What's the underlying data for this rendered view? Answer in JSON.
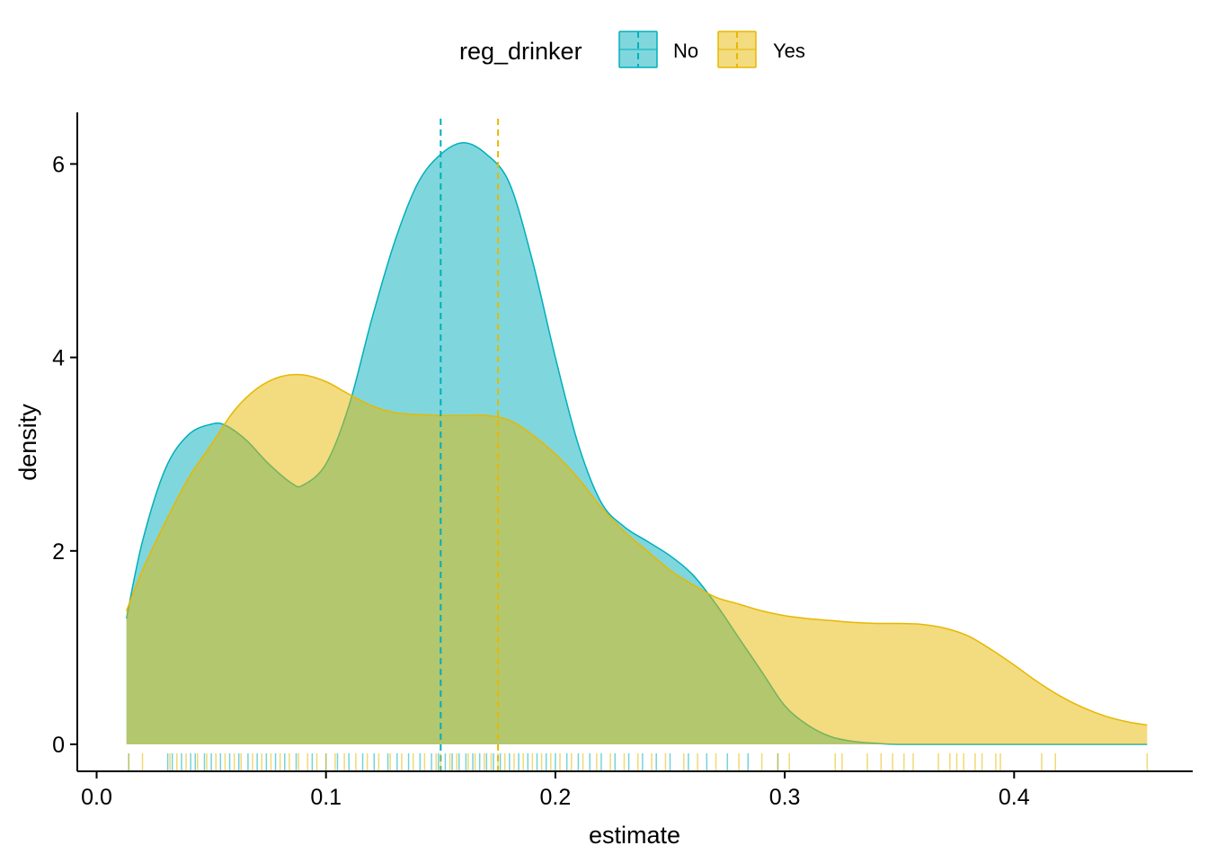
{
  "chart_data": {
    "type": "area",
    "xlabel": "estimate",
    "ylabel": "density",
    "xlim": [
      0.0,
      0.46
    ],
    "ylim": [
      0,
      6.5
    ],
    "x_ticks": [
      0.0,
      0.1,
      0.2,
      0.3,
      0.4
    ],
    "x_tick_labels": [
      "0.0",
      "0.1",
      "0.2",
      "0.3",
      "0.4"
    ],
    "y_ticks": [
      0,
      2,
      4,
      6
    ],
    "y_tick_labels": [
      "0",
      "2",
      "4",
      "6"
    ],
    "grid": false,
    "legend": {
      "title": "reg_drinker",
      "placement": "top"
    },
    "series": [
      {
        "name": "No",
        "color": "#00AFBB",
        "mean": 0.15,
        "x": [
          0.013,
          0.02,
          0.03,
          0.04,
          0.05,
          0.056,
          0.065,
          0.075,
          0.085,
          0.09,
          0.1,
          0.11,
          0.12,
          0.13,
          0.14,
          0.15,
          0.16,
          0.17,
          0.18,
          0.19,
          0.2,
          0.21,
          0.22,
          0.23,
          0.24,
          0.25,
          0.26,
          0.27,
          0.28,
          0.29,
          0.3,
          0.31,
          0.32,
          0.33,
          0.34,
          0.35,
          0.38,
          0.42,
          0.458
        ],
        "y": [
          1.3,
          2.1,
          2.85,
          3.2,
          3.31,
          3.3,
          3.15,
          2.9,
          2.7,
          2.68,
          2.9,
          3.5,
          4.4,
          5.2,
          5.8,
          6.1,
          6.22,
          6.1,
          5.8,
          5.0,
          4.0,
          3.1,
          2.5,
          2.25,
          2.1,
          1.95,
          1.75,
          1.45,
          1.1,
          0.75,
          0.4,
          0.2,
          0.08,
          0.03,
          0.01,
          0.0,
          0.0,
          0.0,
          0.0
        ]
      },
      {
        "name": "Yes",
        "color": "#E7B800",
        "mean": 0.175,
        "x": [
          0.013,
          0.02,
          0.03,
          0.04,
          0.05,
          0.06,
          0.07,
          0.08,
          0.09,
          0.1,
          0.11,
          0.12,
          0.13,
          0.14,
          0.15,
          0.16,
          0.17,
          0.18,
          0.19,
          0.2,
          0.21,
          0.22,
          0.23,
          0.24,
          0.25,
          0.26,
          0.27,
          0.28,
          0.29,
          0.3,
          0.31,
          0.32,
          0.33,
          0.34,
          0.35,
          0.36,
          0.37,
          0.38,
          0.39,
          0.4,
          0.41,
          0.42,
          0.43,
          0.44,
          0.45,
          0.458
        ],
        "y": [
          1.38,
          1.8,
          2.3,
          2.75,
          3.1,
          3.45,
          3.68,
          3.8,
          3.82,
          3.75,
          3.62,
          3.5,
          3.43,
          3.41,
          3.4,
          3.4,
          3.4,
          3.35,
          3.2,
          3.0,
          2.75,
          2.45,
          2.2,
          2.0,
          1.8,
          1.65,
          1.52,
          1.45,
          1.38,
          1.33,
          1.3,
          1.28,
          1.26,
          1.25,
          1.25,
          1.24,
          1.2,
          1.12,
          0.98,
          0.82,
          0.65,
          0.5,
          0.38,
          0.29,
          0.23,
          0.2
        ]
      }
    ],
    "rug": {
      "No": [
        0.014,
        0.031,
        0.033,
        0.037,
        0.041,
        0.043,
        0.047,
        0.05,
        0.054,
        0.058,
        0.062,
        0.066,
        0.07,
        0.074,
        0.078,
        0.082,
        0.087,
        0.094,
        0.1,
        0.105,
        0.11,
        0.116,
        0.121,
        0.127,
        0.131,
        0.136,
        0.141,
        0.146,
        0.149,
        0.152,
        0.155,
        0.158,
        0.161,
        0.164,
        0.167,
        0.17,
        0.173,
        0.176,
        0.18,
        0.184,
        0.188,
        0.192,
        0.196,
        0.2,
        0.205,
        0.21,
        0.215,
        0.22,
        0.226,
        0.232,
        0.238,
        0.244,
        0.25,
        0.258,
        0.266,
        0.275,
        0.284,
        0.297
      ],
      "Yes": [
        0.014,
        0.02,
        0.032,
        0.035,
        0.039,
        0.044,
        0.048,
        0.052,
        0.056,
        0.06,
        0.063,
        0.068,
        0.072,
        0.076,
        0.08,
        0.084,
        0.088,
        0.092,
        0.096,
        0.1,
        0.104,
        0.108,
        0.113,
        0.118,
        0.123,
        0.128,
        0.133,
        0.138,
        0.143,
        0.148,
        0.15,
        0.154,
        0.157,
        0.162,
        0.165,
        0.169,
        0.172,
        0.175,
        0.178,
        0.182,
        0.186,
        0.19,
        0.194,
        0.198,
        0.202,
        0.207,
        0.212,
        0.218,
        0.224,
        0.23,
        0.236,
        0.242,
        0.248,
        0.256,
        0.262,
        0.27,
        0.28,
        0.29,
        0.297,
        0.302,
        0.322,
        0.325,
        0.336,
        0.342,
        0.347,
        0.352,
        0.356,
        0.367,
        0.372,
        0.375,
        0.378,
        0.383,
        0.386,
        0.392,
        0.394,
        0.412,
        0.418,
        0.458
      ]
    }
  }
}
